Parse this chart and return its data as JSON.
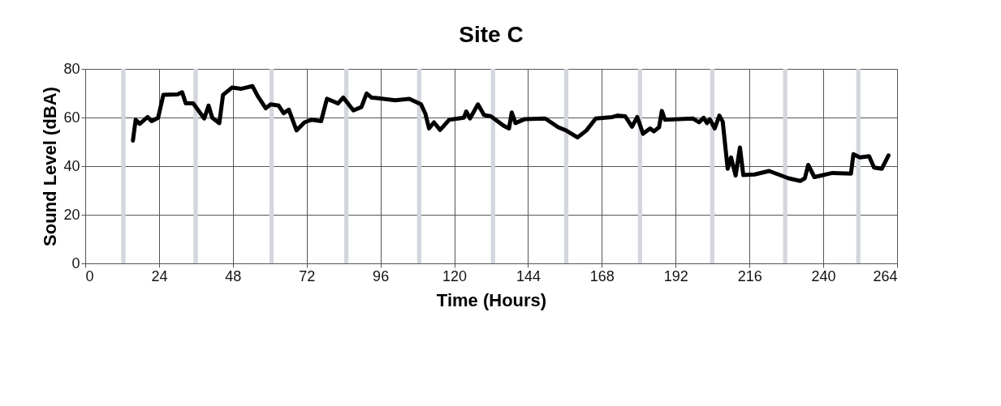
{
  "chart_data": {
    "type": "line",
    "title": "Site C",
    "xlabel": "Time (Hours)",
    "ylabel": "Sound Level (dBA)",
    "xlim": [
      0,
      264
    ],
    "xticks": [
      0,
      24,
      48,
      72,
      96,
      120,
      144,
      168,
      192,
      216,
      240,
      264
    ],
    "ylim": [
      0,
      80
    ],
    "yticks": [
      0,
      20,
      40,
      60,
      80
    ],
    "grid": true,
    "marker": "none",
    "line_style": "solid",
    "bands": [
      {
        "axis": "x",
        "from": 11.7,
        "to": 13.1,
        "color": "#d3d6de"
      },
      {
        "axis": "x",
        "from": 35.2,
        "to": 36.6,
        "color": "#d3d6de"
      },
      {
        "axis": "x",
        "from": 59.9,
        "to": 61.3,
        "color": "#d3d6de"
      },
      {
        "axis": "x",
        "from": 84.2,
        "to": 85.6,
        "color": "#d3d6de"
      },
      {
        "axis": "x",
        "from": 107.9,
        "to": 109.3,
        "color": "#d3d6de"
      },
      {
        "axis": "x",
        "from": 131.9,
        "to": 133.3,
        "color": "#d3d6de"
      },
      {
        "axis": "x",
        "from": 155.7,
        "to": 157.1,
        "color": "#d3d6de"
      },
      {
        "axis": "x",
        "from": 179.7,
        "to": 181.1,
        "color": "#d3d6de"
      },
      {
        "axis": "x",
        "from": 203.2,
        "to": 204.6,
        "color": "#d3d6de"
      },
      {
        "axis": "x",
        "from": 226.9,
        "to": 228.3,
        "color": "#d3d6de"
      },
      {
        "axis": "x",
        "from": 250.7,
        "to": 252.1,
        "color": "#d3d6de"
      }
    ],
    "series": [
      {
        "color": "#000000",
        "x": [
          15.5,
          16.4,
          17.7,
          20.3,
          21.6,
          23.7,
          25.4,
          30.0,
          31.5,
          32.7,
          35.1,
          38.7,
          40.1,
          41.3,
          43.6,
          44.8,
          47.7,
          50.6,
          54.4,
          56.1,
          58.7,
          60.3,
          62.9,
          64.5,
          66.2,
          68.7,
          71.3,
          73.7,
          76.7,
          78.6,
          80.9,
          82.2,
          83.9,
          87.2,
          89.8,
          91.5,
          93.1,
          94.8,
          100.8,
          105.4,
          109.2,
          110.6,
          111.8,
          113.4,
          115.4,
          118.4,
          123.1,
          123.9,
          125.1,
          127.7,
          129.7,
          131.9,
          136.1,
          137.8,
          138.7,
          139.9,
          142.8,
          149.6,
          153.8,
          156.3,
          160.1,
          163.0,
          166.0,
          171.4,
          173.1,
          175.6,
          177.8,
          179.5,
          181.4,
          183.7,
          184.9,
          186.6,
          187.5,
          188.5,
          197.6,
          199.6,
          201.1,
          202.2,
          203.1,
          204.7,
          206.2,
          207.3,
          208.9,
          210.0,
          211.5,
          212.9,
          214.0,
          217.7,
          222.4,
          228.7,
          232.5,
          234.0,
          235.1,
          237.1,
          243.0,
          249.0,
          249.8,
          251.9,
          254.9,
          256.5,
          259.0,
          261.2
        ],
        "values": [
          50.5,
          59.1,
          57.4,
          60.2,
          58.5,
          59.9,
          69.3,
          69.5,
          70.4,
          65.8,
          65.8,
          59.6,
          64.9,
          59.9,
          57.7,
          69.3,
          72.3,
          71.8,
          72.9,
          68.8,
          63.8,
          65.4,
          64.9,
          61.8,
          63.2,
          54.7,
          58.0,
          59.1,
          58.5,
          67.7,
          66.5,
          65.8,
          68.2,
          62.9,
          64.3,
          69.9,
          68.2,
          68.0,
          67.1,
          67.7,
          65.4,
          61.6,
          55.5,
          58.0,
          54.9,
          59.1,
          59.9,
          62.5,
          59.6,
          65.4,
          61.0,
          60.5,
          56.6,
          55.5,
          62.1,
          57.7,
          59.3,
          59.6,
          56.0,
          54.7,
          51.8,
          54.7,
          59.6,
          60.2,
          60.8,
          60.5,
          56.2,
          60.2,
          53.3,
          55.5,
          54.3,
          56.0,
          62.7,
          59.1,
          59.6,
          58.0,
          59.9,
          57.7,
          59.3,
          55.5,
          60.8,
          58.3,
          38.9,
          43.6,
          36.1,
          47.7,
          36.3,
          36.6,
          38.0,
          35.0,
          33.9,
          35.0,
          40.5,
          35.5,
          37.2,
          36.9,
          44.9,
          43.6,
          44.1,
          39.4,
          38.9,
          44.4
        ]
      }
    ]
  }
}
